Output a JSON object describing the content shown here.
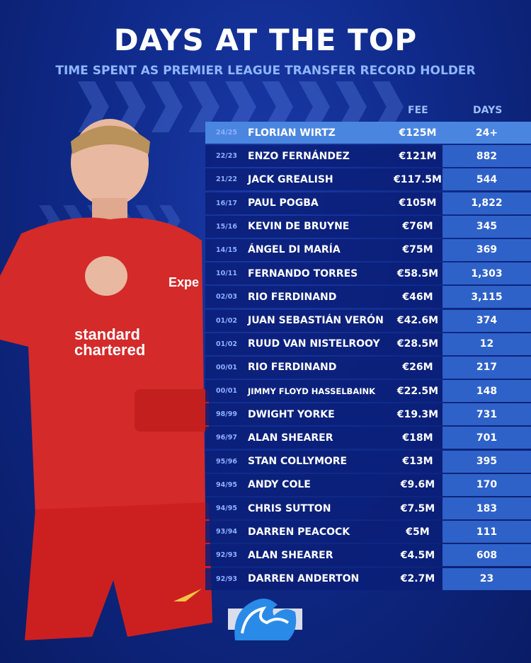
{
  "header": {
    "title": "DAYS AT THE TOP",
    "subtitle": "TIME SPENT AS PREMIER LEAGUE TRANSFER RECORD HOLDER"
  },
  "columns": {
    "fee": "FEE",
    "days": "DAYS"
  },
  "colors": {
    "background": "#0f2a8a",
    "highlight_row": "#4a86e0",
    "days_column": "#2f62c9",
    "subtitle": "#8fb6ff"
  },
  "player_shirt": {
    "sponsor": "standard chartered",
    "sleeve_sponsor": "Expe"
  },
  "rows": [
    {
      "season": "24/25",
      "name": "FLORIAN WIRTZ",
      "fee": "€125M",
      "days": "24+"
    },
    {
      "season": "22/23",
      "name": "ENZO FERNÁNDEZ",
      "fee": "€121M",
      "days": "882"
    },
    {
      "season": "21/22",
      "name": "JACK GREALISH",
      "fee": "€117.5M",
      "days": "544"
    },
    {
      "season": "16/17",
      "name": "PAUL POGBA",
      "fee": "€105M",
      "days": "1,822"
    },
    {
      "season": "15/16",
      "name": "KEVIN DE BRUYNE",
      "fee": "€76M",
      "days": "345"
    },
    {
      "season": "14/15",
      "name": "ÁNGEL DI MARÍA",
      "fee": "€75M",
      "days": "369"
    },
    {
      "season": "10/11",
      "name": "FERNANDO TORRES",
      "fee": "€58.5M",
      "days": "1,303"
    },
    {
      "season": "02/03",
      "name": "RIO FERDINAND",
      "fee": "€46M",
      "days": "3,115"
    },
    {
      "season": "01/02",
      "name": "JUAN SEBASTIÁN VERÓN",
      "fee": "€42.6M",
      "days": "374"
    },
    {
      "season": "01/02",
      "name": "RUUD VAN NISTELROOY",
      "fee": "€28.5M",
      "days": "12"
    },
    {
      "season": "00/01",
      "name": "RIO FERDINAND",
      "fee": "€26M",
      "days": "217"
    },
    {
      "season": "00/01",
      "name": "JIMMY FLOYD HASSELBAINK",
      "fee": "€22.5M",
      "days": "148"
    },
    {
      "season": "98/99",
      "name": "DWIGHT YORKE",
      "fee": "€19.3M",
      "days": "731"
    },
    {
      "season": "96/97",
      "name": "ALAN SHEARER",
      "fee": "€18M",
      "days": "701"
    },
    {
      "season": "95/96",
      "name": "STAN COLLYMORE",
      "fee": "€13M",
      "days": "395"
    },
    {
      "season": "94/95",
      "name": "ANDY COLE",
      "fee": "€9.6M",
      "days": "170"
    },
    {
      "season": "94/95",
      "name": "CHRIS SUTTON",
      "fee": "€7.5M",
      "days": "183"
    },
    {
      "season": "93/94",
      "name": "DARREN PEACOCK",
      "fee": "€5M",
      "days": "111"
    },
    {
      "season": "92/93",
      "name": "ALAN SHEARER",
      "fee": "€4.5M",
      "days": "608"
    },
    {
      "season": "92/93",
      "name": "DARREN ANDERTON",
      "fee": "€2.7M",
      "days": "23"
    }
  ]
}
